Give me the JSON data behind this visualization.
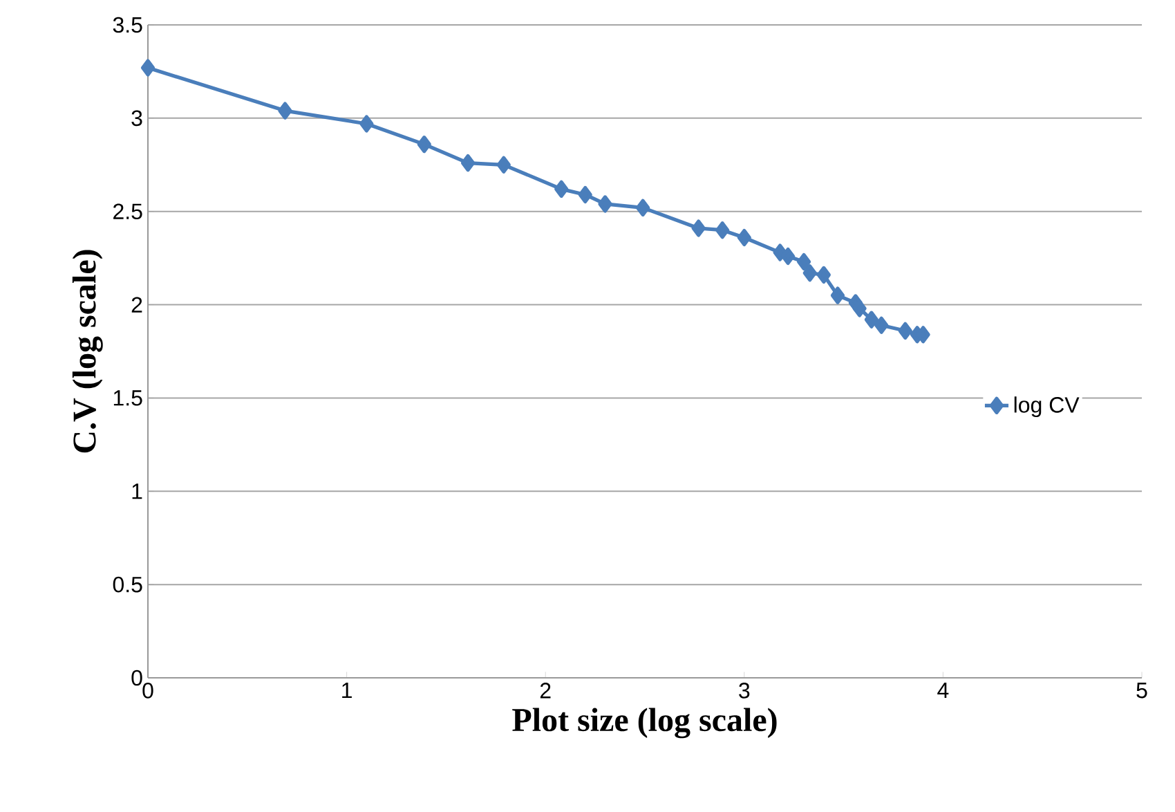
{
  "chart_data": {
    "type": "line",
    "xlabel": "Plot size (log scale)",
    "ylabel": "C.V (log scale)",
    "x": [
      0,
      0.69,
      1.1,
      1.39,
      1.61,
      1.79,
      2.08,
      2.2,
      2.3,
      2.49,
      2.77,
      2.89,
      3.0,
      3.18,
      3.22,
      3.3,
      3.33,
      3.4,
      3.47,
      3.56,
      3.58,
      3.64,
      3.69,
      3.81,
      3.87,
      3.9
    ],
    "series": [
      {
        "name": "log CV",
        "color": "#4a7ebb",
        "values": [
          3.27,
          3.04,
          2.97,
          2.86,
          2.76,
          2.75,
          2.62,
          2.59,
          2.54,
          2.52,
          2.41,
          2.4,
          2.36,
          2.28,
          2.26,
          2.23,
          2.17,
          2.16,
          2.05,
          2.01,
          1.98,
          1.92,
          1.89,
          1.86,
          1.84,
          1.84
        ]
      }
    ],
    "xlim": [
      0,
      5
    ],
    "ylim": [
      0,
      3.5
    ],
    "xticks": [
      0,
      1,
      2,
      3,
      4,
      5
    ],
    "yticks": [
      0,
      0.5,
      1,
      1.5,
      2,
      2.5,
      3,
      3.5
    ],
    "grid": "y",
    "legend": "right",
    "marker": "diamond",
    "line_style": "solid"
  }
}
